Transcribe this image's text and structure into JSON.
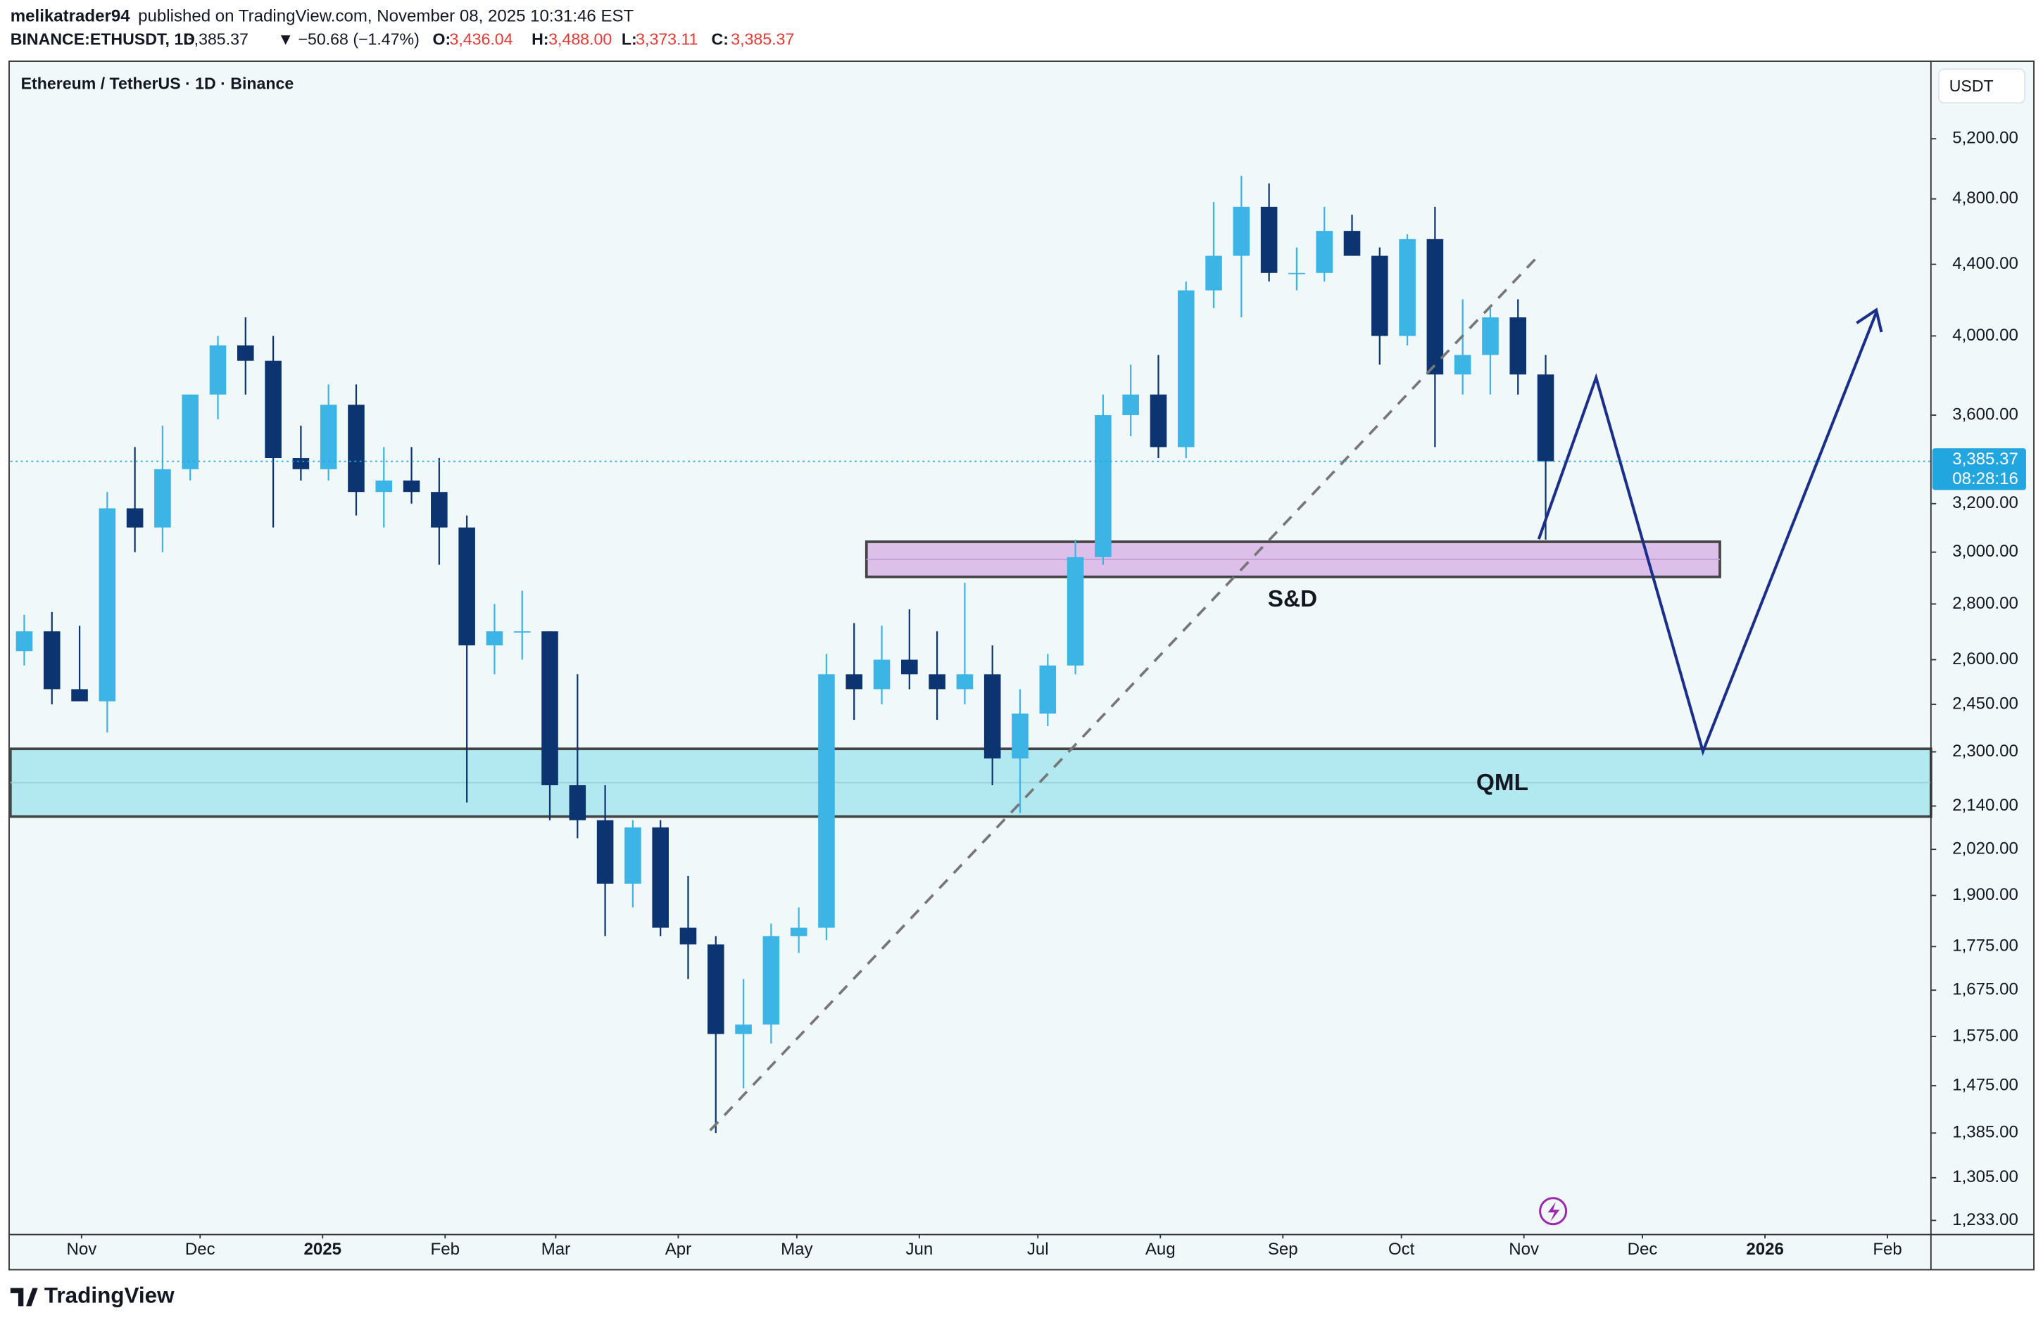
{
  "header": {
    "author": "melikatrader94",
    "published": "published on TradingView.com, November 08, 2025 10:31:46 EST",
    "symbol": "BINANCE:ETHUSDT, 1D",
    "price": "3,385.37",
    "change": "▼ −50.68 (−1.47%)",
    "o_label": "O:",
    "o": "3,436.04",
    "h_label": "H:",
    "h": "3,488.00",
    "l_label": "L:",
    "l": "3,373.11",
    "c_label": "C:",
    "c": "3,385.37"
  },
  "legend": "Ethereum / TetherUS · 1D · Binance",
  "currency": "USDT",
  "countdown": "08:28:16",
  "footer": "TradingView",
  "chart_data": {
    "type": "candlestick",
    "log_scale": true,
    "up_color": "#3cb4e6",
    "down_color": "#0c3470",
    "last_price": {
      "value": 3385.37,
      "label": "3,385.37"
    },
    "annotations": {
      "supply_demand": "S&D",
      "qml": "QML"
    },
    "xlim": [
      "2024-10-14",
      "2026-02-12"
    ],
    "xticks": [
      {
        "value": "2024-11-01",
        "label": "Nov"
      },
      {
        "value": "2024-12-01",
        "label": "Dec"
      },
      {
        "value": "2025-01-01",
        "label": "2025"
      },
      {
        "value": "2025-02-01",
        "label": "Feb"
      },
      {
        "value": "2025-03-01",
        "label": "Mar"
      },
      {
        "value": "2025-04-01",
        "label": "Apr"
      },
      {
        "value": "2025-05-01",
        "label": "May"
      },
      {
        "value": "2025-06-01",
        "label": "Jun"
      },
      {
        "value": "2025-07-01",
        "label": "Jul"
      },
      {
        "value": "2025-08-01",
        "label": "Aug"
      },
      {
        "value": "2025-09-01",
        "label": "Sep"
      },
      {
        "value": "2025-10-01",
        "label": "Oct"
      },
      {
        "value": "2025-11-01",
        "label": "Nov"
      },
      {
        "value": "2025-12-01",
        "label": "Dec"
      },
      {
        "value": "2026-01-01",
        "label": "2026"
      },
      {
        "value": "2026-02-01",
        "label": "Feb"
      }
    ],
    "ylim": [
      1210,
      5765
    ],
    "yticks": [
      {
        "value": 5200,
        "label": "5,200.00"
      },
      {
        "value": 4800,
        "label": "4,800.00"
      },
      {
        "value": 4400,
        "label": "4,400.00"
      },
      {
        "value": 4000,
        "label": "4,000.00"
      },
      {
        "value": 3600,
        "label": "3,600.00"
      },
      {
        "value": 3200,
        "label": "3,200.00"
      },
      {
        "value": 3000,
        "label": "3,000.00"
      },
      {
        "value": 2800,
        "label": "2,800.00"
      },
      {
        "value": 2600,
        "label": "2,600.00"
      },
      {
        "value": 2450,
        "label": "2,450.00"
      },
      {
        "value": 2300,
        "label": "2,300.00"
      },
      {
        "value": 2140,
        "label": "2,140.00"
      },
      {
        "value": 2020,
        "label": "2,020.00"
      },
      {
        "value": 1900,
        "label": "1,900.00"
      },
      {
        "value": 1775,
        "label": "1,775.00"
      },
      {
        "value": 1675,
        "label": "1,675.00"
      },
      {
        "value": 1575,
        "label": "1,575.00"
      },
      {
        "value": 1475,
        "label": "1,475.00"
      },
      {
        "value": 1385,
        "label": "1,385.00"
      },
      {
        "value": 1305,
        "label": "1,305.00"
      },
      {
        "value": 1233,
        "label": "1,233.00"
      }
    ],
    "x": [
      "2024-10-14",
      "2024-10-21",
      "2024-10-28",
      "2024-11-04",
      "2024-11-11",
      "2024-11-18",
      "2024-11-25",
      "2024-12-02",
      "2024-12-09",
      "2024-12-16",
      "2024-12-23",
      "2024-12-30",
      "2025-01-06",
      "2025-01-13",
      "2025-01-20",
      "2025-01-27",
      "2025-02-03",
      "2025-02-10",
      "2025-02-17",
      "2025-02-24",
      "2025-03-03",
      "2025-03-10",
      "2025-03-17",
      "2025-03-24",
      "2025-03-31",
      "2025-04-07",
      "2025-04-14",
      "2025-04-21",
      "2025-04-28",
      "2025-05-05",
      "2025-05-12",
      "2025-05-19",
      "2025-05-26",
      "2025-06-02",
      "2025-06-09",
      "2025-06-16",
      "2025-06-23",
      "2025-06-30",
      "2025-07-07",
      "2025-07-14",
      "2025-07-21",
      "2025-07-28",
      "2025-08-04",
      "2025-08-11",
      "2025-08-18",
      "2025-08-25",
      "2025-09-01",
      "2025-09-08",
      "2025-09-15",
      "2025-09-22",
      "2025-09-29",
      "2025-10-06",
      "2025-10-13",
      "2025-10-20",
      "2025-10-27",
      "2025-11-03"
    ],
    "open": [
      2630,
      2700,
      2500,
      2460,
      3180,
      3100,
      3350,
      3700,
      3950,
      3870,
      3400,
      3350,
      3650,
      3250,
      3300,
      3250,
      3100,
      2650,
      2700,
      2700,
      2200,
      2100,
      1930,
      2080,
      1820,
      1780,
      1580,
      1600,
      1800,
      1820,
      2550,
      2500,
      2600,
      2550,
      2500,
      2550,
      2280,
      2420,
      2580,
      2980,
      3600,
      3700,
      3450,
      4250,
      4450,
      4750,
      4350,
      4350,
      4600,
      4450,
      4000,
      4550,
      3800,
      3900,
      4100,
      3800
    ],
    "high": [
      2760,
      2770,
      2720,
      3250,
      3450,
      3550,
      3700,
      4000,
      4100,
      4000,
      3550,
      3750,
      3750,
      3450,
      3450,
      3400,
      3150,
      2800,
      2850,
      2700,
      2550,
      2200,
      2100,
      2100,
      1950,
      1800,
      1700,
      1830,
      1870,
      2620,
      2730,
      2720,
      2780,
      2700,
      2880,
      2650,
      2500,
      2620,
      3050,
      3700,
      3850,
      3900,
      4300,
      4780,
      4950,
      4900,
      4500,
      4750,
      4700,
      4500,
      4580,
      4750,
      4200,
      4150,
      4200,
      3900
    ],
    "low": [
      2580,
      2450,
      2470,
      2360,
      3000,
      3000,
      3300,
      3580,
      3700,
      3100,
      3300,
      3300,
      3150,
      3100,
      3200,
      2950,
      2150,
      2550,
      2600,
      2100,
      2050,
      1800,
      1870,
      1800,
      1700,
      1385,
      1470,
      1560,
      1760,
      1790,
      2400,
      2450,
      2500,
      2400,
      2450,
      2200,
      2120,
      2380,
      2550,
      2950,
      3500,
      3400,
      3400,
      4150,
      4100,
      4300,
      4250,
      4300,
      4450,
      3850,
      3950,
      3450,
      3700,
      3700,
      3700,
      3050
    ],
    "close": [
      2700,
      2500,
      2460,
      3180,
      3100,
      3350,
      3700,
      3950,
      3870,
      3400,
      3350,
      3650,
      3250,
      3300,
      3250,
      3100,
      2650,
      2700,
      2700,
      2200,
      2100,
      1930,
      2080,
      1820,
      1780,
      1580,
      1600,
      1800,
      1820,
      2550,
      2500,
      2600,
      2550,
      2500,
      2550,
      2280,
      2420,
      2580,
      2980,
      3600,
      3700,
      3450,
      4250,
      4450,
      4750,
      4350,
      4350,
      4600,
      4450,
      4000,
      4550,
      3800,
      3900,
      4100,
      3800,
      3385.37
    ]
  }
}
